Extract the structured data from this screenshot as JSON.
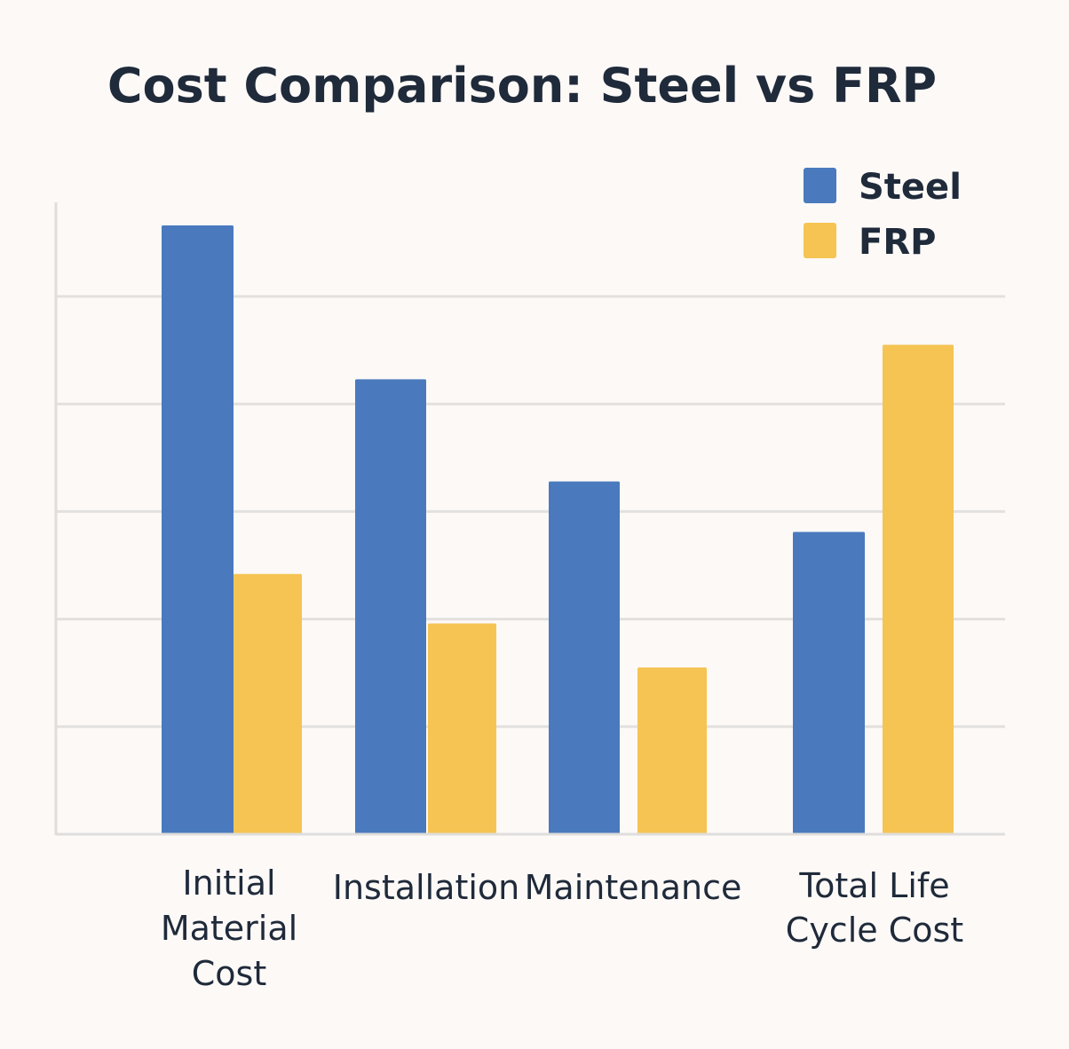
{
  "chart_data": {
    "type": "bar",
    "title": "Cost Comparison: Steel vs FRP",
    "xlabel": "",
    "ylabel": "",
    "categories": [
      [
        "Initial",
        "Material",
        "Cost"
      ],
      [
        "Installation"
      ],
      [
        "Maintenance"
      ],
      [
        "Total Life",
        "Cycle Cost"
      ]
    ],
    "series": [
      {
        "name": "Steel",
        "color": "#4a7abd",
        "values": [
          5.66,
          4.23,
          3.28,
          2.81
        ]
      },
      {
        "name": "FRP",
        "color": "#f5c452",
        "values": [
          2.42,
          1.96,
          1.55,
          4.55
        ]
      }
    ],
    "ylim": [
      0,
      5.9
    ],
    "y_tick_labels_shown": false,
    "grid": true,
    "legend_position": "top-right"
  }
}
